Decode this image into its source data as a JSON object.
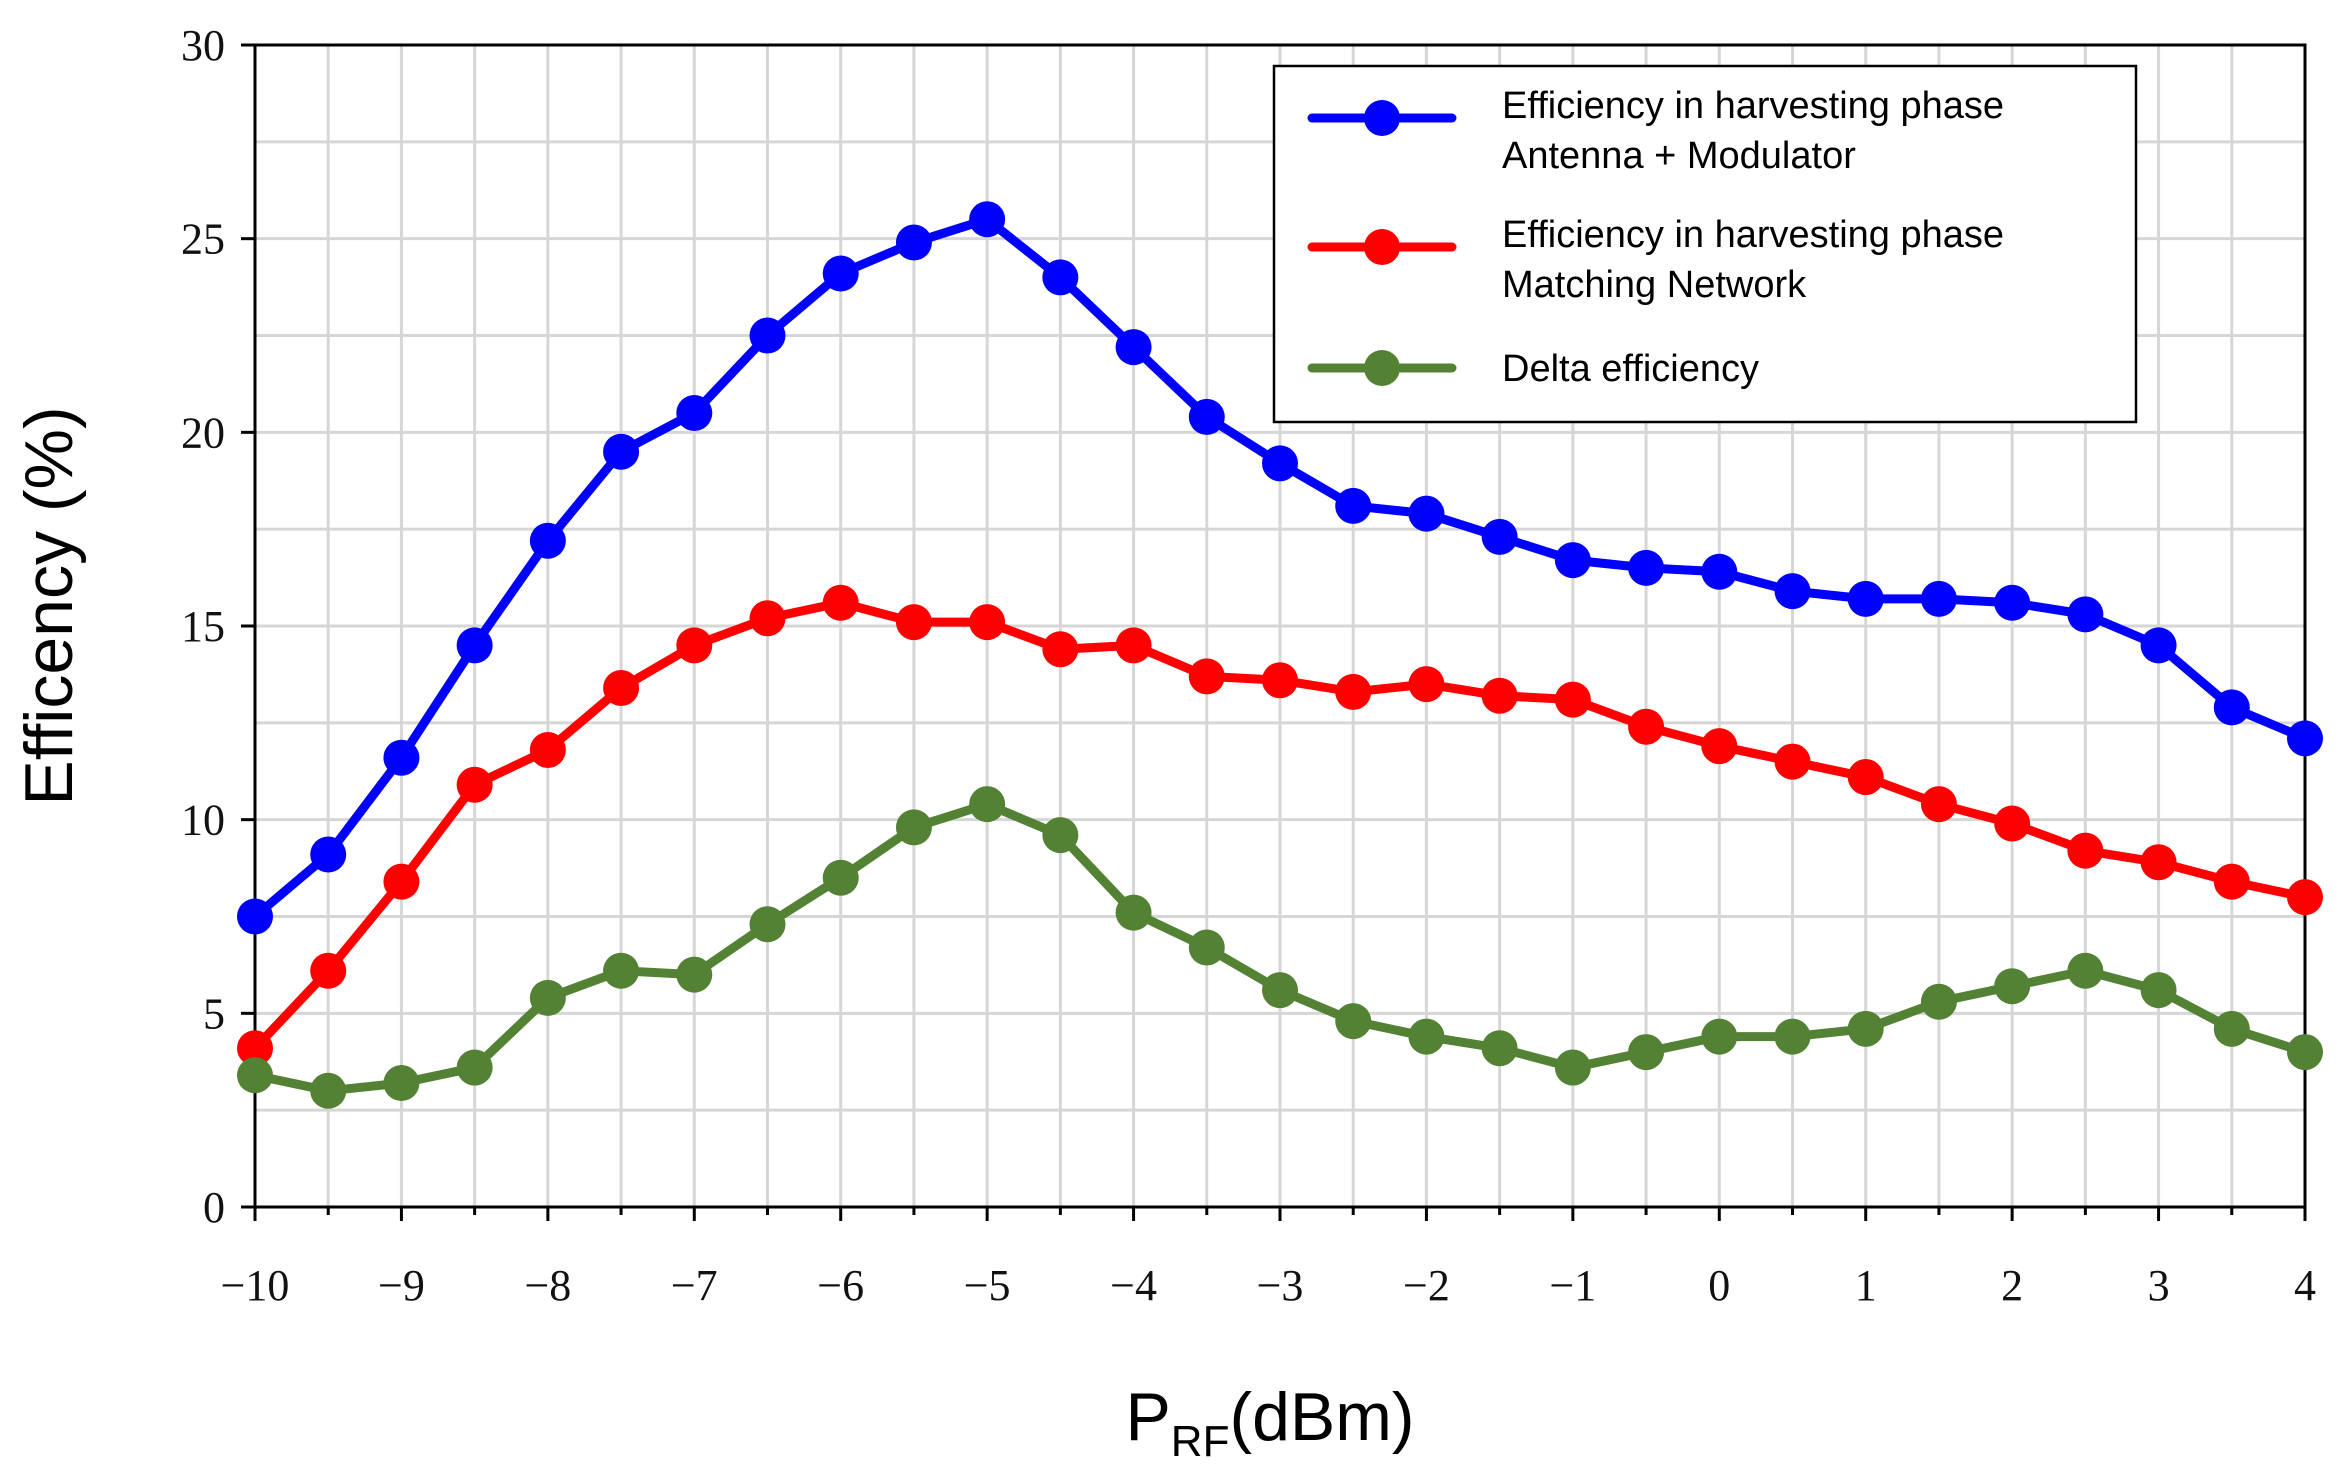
{
  "chart_data": {
    "type": "line",
    "title": "",
    "xlabel": {
      "main": "P",
      "sub": "RF",
      "unit": "(dBm)"
    },
    "ylabel": "Efficency (%)",
    "xlim": [
      -10,
      4
    ],
    "ylim": [
      0,
      30
    ],
    "x_ticks": [
      -10,
      -9,
      -8,
      -7,
      -6,
      -5,
      -4,
      -3,
      -2,
      -1,
      0,
      1,
      2,
      3,
      4
    ],
    "x_tick_labels": [
      "−10",
      "−9",
      "−8",
      "−7",
      "−6",
      "−5",
      "−4",
      "−3",
      "−2",
      "−1",
      "0",
      "1",
      "2",
      "3",
      "4"
    ],
    "y_ticks": [
      0,
      5,
      10,
      15,
      20,
      25,
      30
    ],
    "y_tick_labels": [
      "0",
      "5",
      "10",
      "15",
      "20",
      "25",
      "30"
    ],
    "grid": true,
    "legend_position": "top-right",
    "x": [
      -10,
      -9.5,
      -9,
      -8.5,
      -8,
      -7.5,
      -7,
      -6.5,
      -6,
      -5.5,
      -5,
      -4.5,
      -4,
      -3.5,
      -3,
      -2.5,
      -2,
      -1.5,
      -1,
      -0.5,
      0,
      0.5,
      1,
      1.5,
      2,
      2.5,
      3,
      3.5,
      4
    ],
    "series": [
      {
        "name_line1": "Efficiency in harvesting phase",
        "name_line2": "Antenna + Modulator",
        "color": "#0000ff",
        "values": [
          7.5,
          9.1,
          11.6,
          14.5,
          17.2,
          19.5,
          20.5,
          22.5,
          24.1,
          24.9,
          25.5,
          24.0,
          22.2,
          20.4,
          19.2,
          18.1,
          17.9,
          17.3,
          16.7,
          16.5,
          16.4,
          15.9,
          15.7,
          15.7,
          15.6,
          15.3,
          14.5,
          12.9,
          12.1
        ]
      },
      {
        "name_line1": "Efficiency in harvesting phase",
        "name_line2": "Matching Network",
        "color": "#ff0000",
        "values": [
          4.1,
          6.1,
          8.4,
          10.9,
          11.8,
          13.4,
          14.5,
          15.2,
          15.6,
          15.1,
          15.1,
          14.4,
          14.5,
          13.7,
          13.6,
          13.3,
          13.5,
          13.2,
          13.1,
          12.4,
          11.9,
          11.5,
          11.1,
          10.4,
          9.9,
          9.2,
          8.9,
          8.4,
          8.0
        ]
      },
      {
        "name_line1": "Delta efficiency",
        "name_line2": "",
        "color": "#548235",
        "values": [
          3.4,
          3.0,
          3.2,
          3.6,
          5.4,
          6.1,
          6.0,
          7.3,
          8.5,
          9.8,
          10.4,
          9.6,
          7.6,
          6.7,
          5.6,
          4.8,
          4.4,
          4.1,
          3.6,
          4.0,
          4.4,
          4.4,
          4.6,
          5.3,
          5.7,
          6.1,
          5.6,
          4.6,
          4.0
        ]
      }
    ]
  }
}
